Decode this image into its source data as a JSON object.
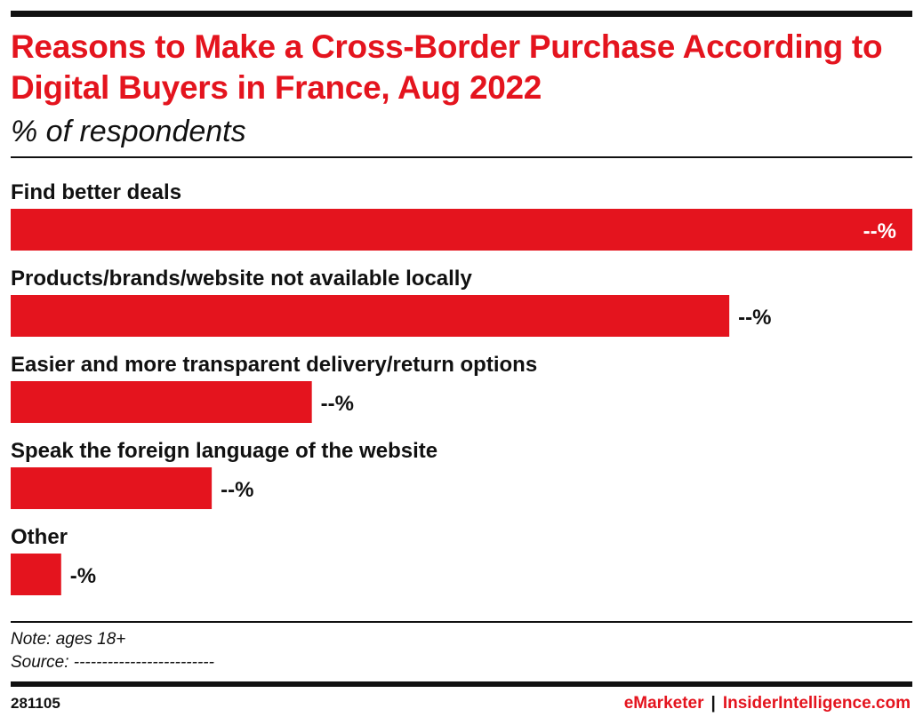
{
  "title": "Reasons to Make a Cross-Border Purchase According to Digital Buyers in France, Aug 2022",
  "subtitle": "% of respondents",
  "note": "Note: ages 18+",
  "source": "Source: -------------------------",
  "footer": {
    "chart_id": "281105",
    "brand_primary": "eMarketer",
    "separator": "|",
    "brand_secondary": "InsiderIntelligence.com"
  },
  "colors": {
    "accent": "#e4141e",
    "text": "#111111"
  },
  "chart_data": {
    "type": "bar",
    "orientation": "horizontal",
    "categories": [
      "Find better deals",
      "Products/brands/website not available locally",
      "Easier and more transparent delivery/return options",
      "Speak the foreign language of the website",
      "Other"
    ],
    "values": [
      100,
      79.7,
      33.4,
      22.3,
      5.6
    ],
    "value_labels": [
      "--%",
      "--%",
      "--%",
      "--%",
      "-%"
    ],
    "title": "Reasons to Make a Cross-Border Purchase According to Digital Buyers in France, Aug 2022",
    "subtitle": "% of respondents",
    "xlabel": "",
    "ylabel": "",
    "grid": false,
    "legend": "none",
    "bar_color": "#e4141e"
  }
}
